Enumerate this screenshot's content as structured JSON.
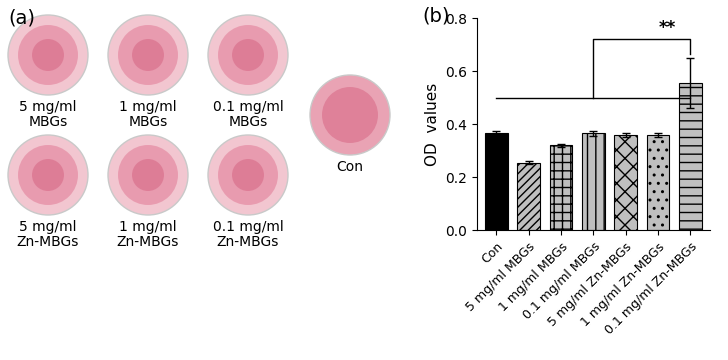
{
  "panel_a": {
    "label": "(a)",
    "wells": [
      {
        "label": "5 mg/ml\nMBGs"
      },
      {
        "label": "1 mg/ml\nMBGs"
      },
      {
        "label": "0.1 mg/ml\nMBGs"
      },
      {
        "label": "5 mg/ml\nZn-MBGs"
      },
      {
        "label": "1 mg/ml\nZn-MBGs"
      },
      {
        "label": "0.1 mg/ml\nZn-MBGs"
      }
    ],
    "control": "Con"
  },
  "chart_data": {
    "type": "bar",
    "panel_label": "(b)",
    "y_label": "OD  values",
    "categories": [
      "Con",
      "5 mg/ml MBGs",
      "1 mg/ml MBGs",
      "0.1 mg/ml MBGs",
      "5 mg/ml Zn-MBGs",
      "1 mg/ml Zn-MBGs",
      "0.1 mg/ml Zn-MBGs"
    ],
    "values": [
      0.365,
      0.255,
      0.32,
      0.365,
      0.36,
      0.36,
      0.555
    ],
    "errors": [
      0.01,
      0.005,
      0.005,
      0.008,
      0.008,
      0.008,
      0.095
    ],
    "colors": [
      "#000000",
      "#bfbfbf",
      "#bfbfbf",
      "#bfbfbf",
      "#bfbfbf",
      "#bfbfbf",
      "#bfbfbf"
    ],
    "ylim": [
      0,
      0.8
    ],
    "yticks": [
      {
        "value": 0,
        "label": "0.0"
      },
      0.2,
      0.4,
      0.6,
      0.8
    ],
    "annotations": [
      {
        "text": "**"
      }
    ]
  }
}
